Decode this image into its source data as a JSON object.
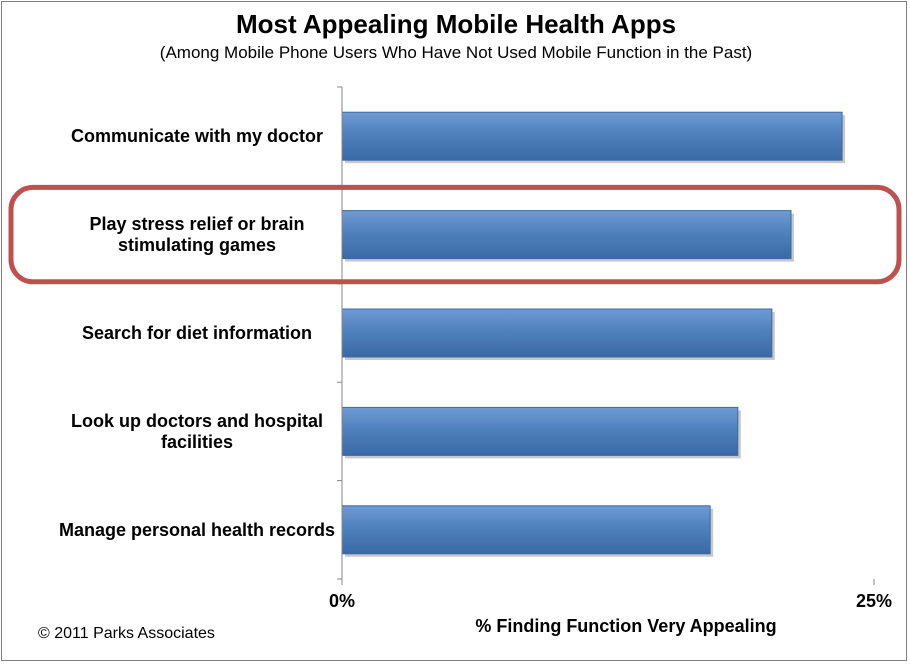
{
  "chart_data": {
    "type": "bar",
    "orientation": "horizontal",
    "title": "Most Appealing Mobile Health Apps",
    "subtitle": "(Among Mobile Phone Users Who Have Not Used Mobile Function in the Past)",
    "categories": [
      [
        "Communicate with my doctor"
      ],
      [
        "Play stress relief or brain",
        "stimulating games"
      ],
      [
        "Search for diet information"
      ],
      [
        "Look up doctors and hospital",
        "facilities"
      ],
      [
        "Manage personal health records"
      ]
    ],
    "values": [
      23.5,
      21.1,
      20.2,
      18.6,
      17.3
    ],
    "xlim": [
      0,
      25
    ],
    "x_ticks": [
      "0%",
      "25%"
    ],
    "xlabel": "% Finding Function Very Appealing",
    "ylabel": "",
    "highlighted_index": 1,
    "grid": false,
    "legend": "none",
    "colors": {
      "bar": "#4f81bd",
      "bar_light": "#6f9bd4",
      "bar_dark": "#3a6aa6",
      "highlight": "#c0504d",
      "axis": "#868686"
    }
  },
  "footer": {
    "copyright": "© 2011 Parks Associates"
  }
}
